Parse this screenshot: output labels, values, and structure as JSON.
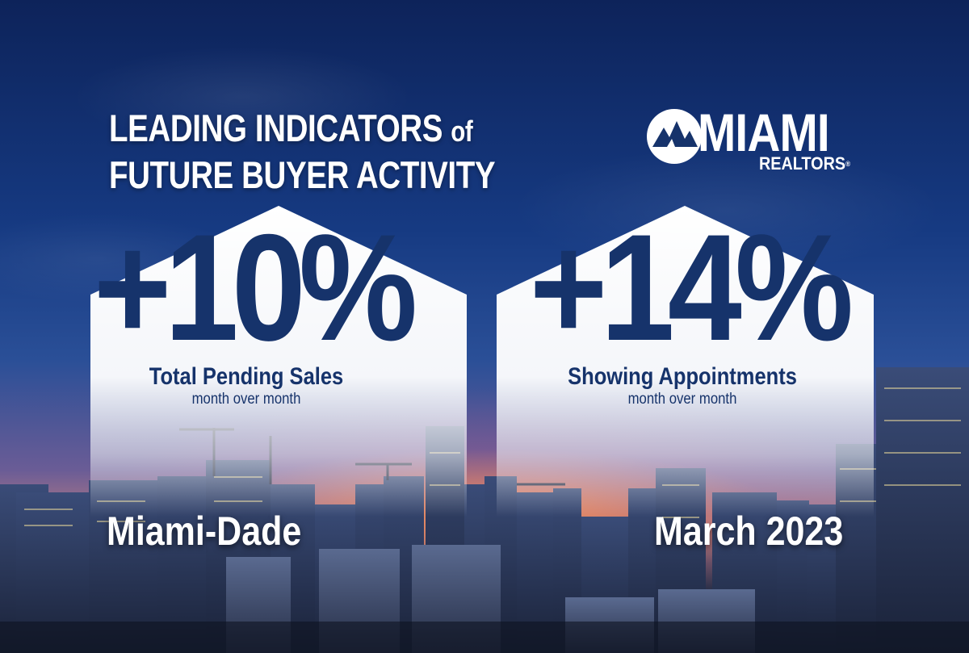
{
  "headline": {
    "line1_main": "LEADING INDICATORS ",
    "line1_small": "of",
    "line2": "FUTURE BUYER ACTIVITY"
  },
  "logo": {
    "word": "MIAMI",
    "sub": "REALTORS",
    "mark": "®"
  },
  "metrics": [
    {
      "value": "+10%",
      "label": "Total Pending Sales",
      "sub": "month over month"
    },
    {
      "value": "+14%",
      "label": "Showing Appointments",
      "sub": "month over month"
    }
  ],
  "location": "Miami-Dade",
  "period": "March 2023",
  "colors": {
    "sky_top": "#0d235a",
    "sky_mid": "#2a4f97",
    "sunset": "#ff9650",
    "metric_text": "#16336b",
    "white": "#ffffff"
  }
}
